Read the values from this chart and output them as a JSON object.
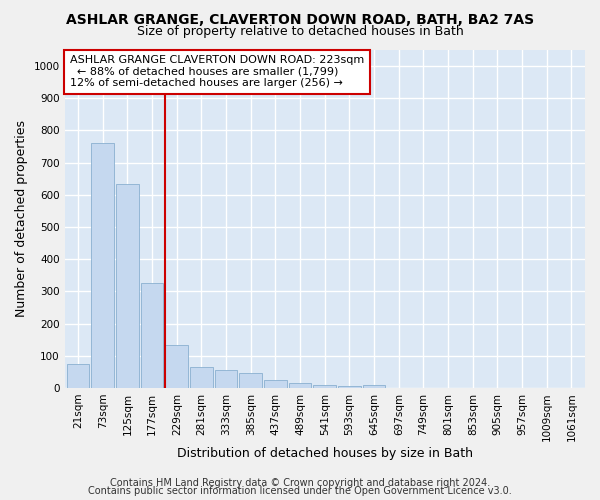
{
  "title_line1": "ASHLAR GRANGE, CLAVERTON DOWN ROAD, BATH, BA2 7AS",
  "title_line2": "Size of property relative to detached houses in Bath",
  "xlabel": "Distribution of detached houses by size in Bath",
  "ylabel": "Number of detached properties",
  "footer_line1": "Contains HM Land Registry data © Crown copyright and database right 2024.",
  "footer_line2": "Contains public sector information licensed under the Open Government Licence v3.0.",
  "annotation_line1": "ASHLAR GRANGE CLAVERTON DOWN ROAD: 223sqm",
  "annotation_line2": "  ← 88% of detached houses are smaller (1,799)",
  "annotation_line3": "12% of semi-detached houses are larger (256) →",
  "bar_labels": [
    "21sqm",
    "73sqm",
    "125sqm",
    "177sqm",
    "229sqm",
    "281sqm",
    "333sqm",
    "385sqm",
    "437sqm",
    "489sqm",
    "541sqm",
    "593sqm",
    "645sqm",
    "697sqm",
    "749sqm",
    "801sqm",
    "853sqm",
    "905sqm",
    "957sqm",
    "1009sqm",
    "1061sqm"
  ],
  "bar_values": [
    75,
    760,
    635,
    325,
    135,
    65,
    55,
    45,
    25,
    15,
    10,
    5,
    8,
    0,
    0,
    0,
    0,
    0,
    0,
    0,
    0
  ],
  "bar_color": "#c5d8ef",
  "bar_edge_color": "#8ab0d0",
  "vline_color": "#cc0000",
  "background_color": "#dce8f5",
  "grid_color": "#ffffff",
  "ylim": [
    0,
    1050
  ],
  "yticks": [
    0,
    100,
    200,
    300,
    400,
    500,
    600,
    700,
    800,
    900,
    1000
  ],
  "annotation_box_facecolor": "#ffffff",
  "annotation_box_edge": "#cc0000",
  "title_fontsize": 10,
  "subtitle_fontsize": 9,
  "axis_label_fontsize": 9,
  "tick_fontsize": 7.5,
  "annotation_fontsize": 8,
  "footer_fontsize": 7
}
